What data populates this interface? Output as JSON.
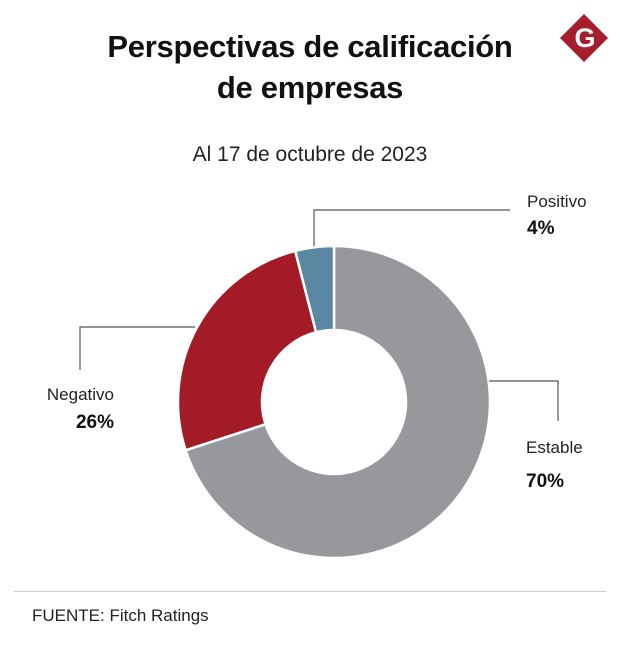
{
  "header": {
    "title_line1": "Perspectivas de calificación",
    "title_line2": "de empresas",
    "subtitle": "Al 17 de octubre de 2023",
    "logo_letter": "G"
  },
  "footer": {
    "source": "FUENTE: Fitch Ratings"
  },
  "colors": {
    "brand": "#a61e2e",
    "estable": "#97989c",
    "negativo": "#a31b26",
    "positivo": "#5a87a2",
    "leader": "#555555"
  },
  "chart_data": {
    "type": "pie",
    "variant": "donut",
    "title": "Perspectivas de calificación de empresas",
    "subtitle": "Al 17 de octubre de 2023",
    "unit": "%",
    "slices": [
      {
        "key": "estable",
        "label": "Estable",
        "value": 70,
        "display": "70%"
      },
      {
        "key": "negativo",
        "label": "Negativo",
        "value": 26,
        "display": "26%"
      },
      {
        "key": "positivo",
        "label": "Positivo",
        "value": 4,
        "display": "4%"
      }
    ]
  }
}
